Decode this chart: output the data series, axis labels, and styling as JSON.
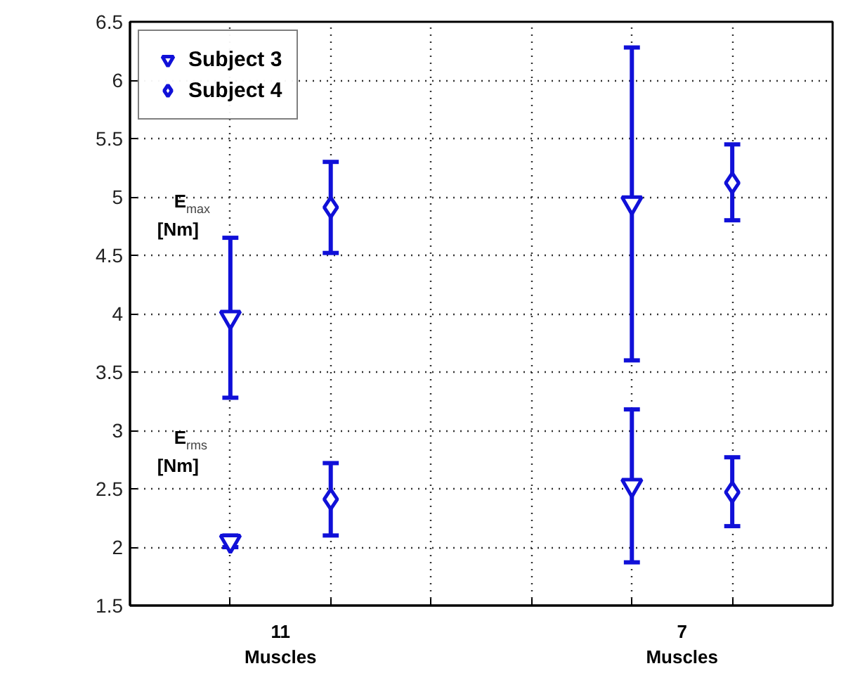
{
  "chart_data": {
    "type": "scatter",
    "ylabel": "E$_{max}$ [Nm]",
    "annotations": [
      "E$_{rms}$ [Nm]"
    ],
    "categories": [
      "11\nMuscles",
      "7\nMuscles"
    ],
    "ylim": [
      1.5,
      6.5
    ],
    "yticks": [
      1.5,
      2,
      2.5,
      3,
      3.5,
      4,
      4.5,
      5,
      5.5,
      6,
      6.5
    ],
    "grid": true,
    "legend": "top left",
    "series": [
      {
        "name": "Subject 3",
        "color": "#1010d8",
        "marker": "triangle",
        "x": [
          "11\nMuscles",
          "11\nMuscles",
          "7\nMuscles",
          "7\nMuscles"
        ],
        "values": [
          3.97,
          2.05,
          4.95,
          2.53
        ],
        "errors": [
          [
            3.28,
            4.65
          ],
          [
            2.0,
            2.1
          ],
          [
            3.6,
            6.28
          ],
          [
            1.87,
            3.18
          ]
        ]
      },
      {
        "name": "Subject 4",
        "color": "#1010d8",
        "marker": "diamond",
        "x": [
          "11\nMuscles",
          "11\nMuscles",
          "7\nMuscles",
          "7\nMuscles"
        ],
        "values": [
          4.91,
          2.41,
          5.12,
          2.47
        ],
        "errors": [
          [
            4.52,
            5.3
          ],
          [
            2.1,
            2.72
          ],
          [
            4.8,
            5.45
          ],
          [
            2.18,
            2.77
          ]
        ]
      }
    ]
  }
}
